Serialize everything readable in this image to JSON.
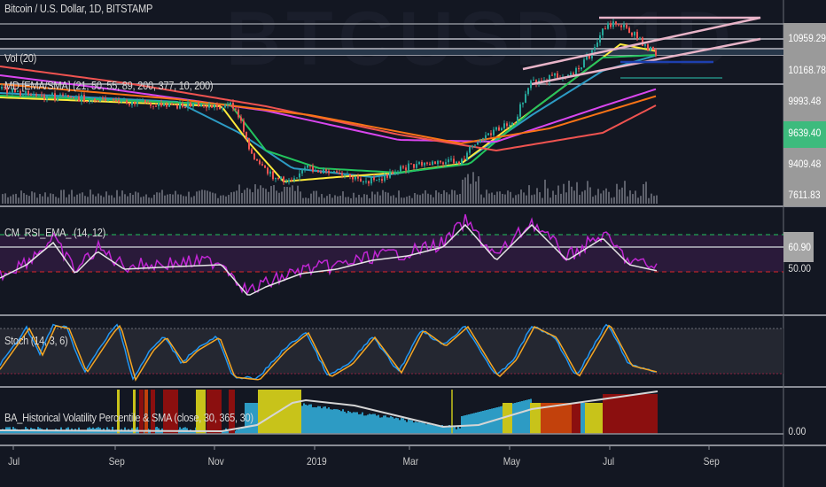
{
  "chart": {
    "watermark": "BTCUSD, 1D",
    "symbol_title": "Bitcoin / U.S. Dollar, 1D, BITSTAMP",
    "indicators": {
      "volume": "Vol (20)",
      "ma": "MD [EMA/SMA] (21, 50, 55, 89, 200, 377, 10, 200)",
      "rsi": "CM_RSI_EMA_ (14, 12)",
      "stoch": "Stoch (14, 3, 6)",
      "hvp": "BA_Historical Volatility Percentile & SMA (close, 30, 365, 30)"
    },
    "price_axis": [
      "10959.29",
      "10168.78",
      "9993.48",
      "9639.40",
      "9409.48",
      "7611.83"
    ],
    "current_price": "9639.40",
    "rsi_axis": [
      "60.90",
      "50.00"
    ],
    "hvp_axis": "0.00",
    "time_axis": [
      "Jul",
      "Sep",
      "Nov",
      "2019",
      "Mar",
      "May",
      "Jul",
      "Sep"
    ],
    "colors": {
      "background": "#131722",
      "up": "#26a69a",
      "down": "#ef5350",
      "current_price": "#3dbb7d",
      "rsi": "#c026d3",
      "stoch_k": "#2196f3",
      "stoch_d": "#f5a623",
      "hvp_blue": "#2d9bc4",
      "hvp_yellow": "#c8c31a",
      "hvp_red": "#8b0f0f"
    }
  }
}
